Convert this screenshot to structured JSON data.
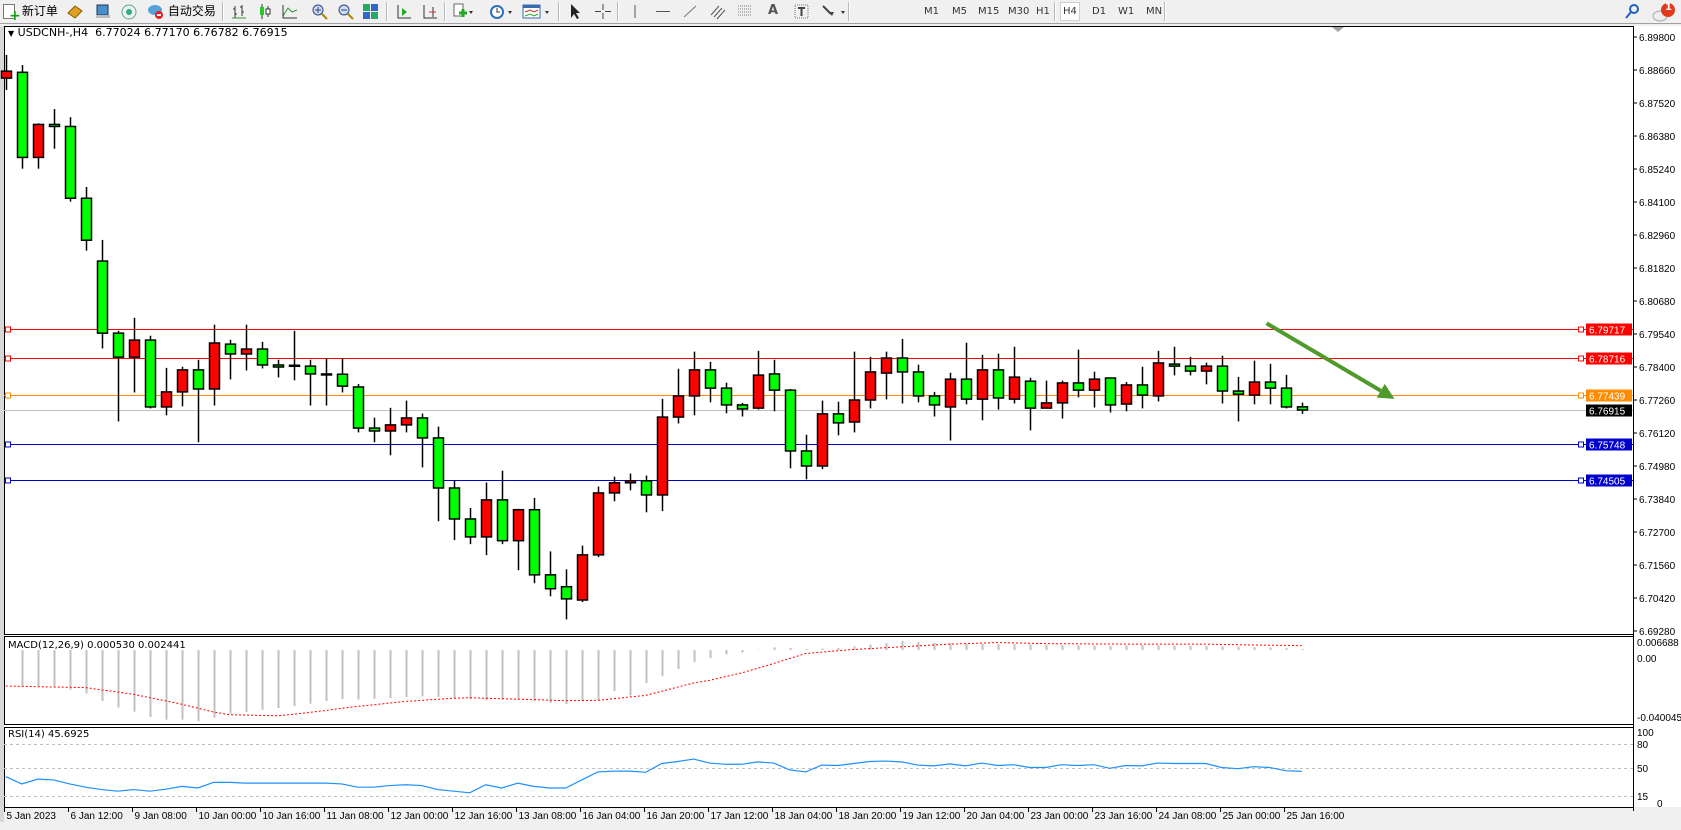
{
  "toolbar": {
    "new_order_label": "新订单",
    "auto_trading_label": "自动交易",
    "timeframes": [
      "M1",
      "M5",
      "M15",
      "M30",
      "H1",
      "H4",
      "D1",
      "W1",
      "MN"
    ],
    "active_timeframe": "H4",
    "notification_count": "1",
    "icons": [
      "new-order-icon",
      "history-center-icon",
      "terminal-icon",
      "signals-icon",
      "auto-trading-icon",
      "bar-chart-icon",
      "candlestick-icon",
      "line-chart-icon",
      "zoom-in-icon",
      "zoom-out-icon",
      "tile-windows-icon",
      "auto-scroll-icon",
      "chart-shift-icon",
      "indicators-icon",
      "periods-icon",
      "templates-icon",
      "cursor-icon",
      "crosshair-icon",
      "vertical-line-icon",
      "horizontal-line-icon",
      "trendline-icon",
      "equidistant-channel-icon",
      "fibonacci-icon",
      "text-icon",
      "text-label-icon",
      "arrows-icon",
      "search-icon",
      "notification-icon"
    ]
  },
  "chart": {
    "symbol": "USDCNH-,H4",
    "open": "6.77024",
    "high": "6.77170",
    "low": "6.76782",
    "close": "6.76915",
    "bull_color": "#ff0000",
    "bear_color": "#00ff00"
  },
  "price_axis": {
    "ticks": [
      "6.89800",
      "6.88660",
      "6.87520",
      "6.86380",
      "6.85240",
      "6.84100",
      "6.82960",
      "6.81820",
      "6.80680",
      "6.79540",
      "6.78400",
      "6.77260",
      "6.76120",
      "6.74980",
      "6.73840",
      "6.72700",
      "6.71560",
      "6.70420",
      "6.69280"
    ]
  },
  "hlines": [
    {
      "price": "6.79717",
      "color": "#ff0000"
    },
    {
      "price": "6.78716",
      "color": "#ff0000"
    },
    {
      "price": "6.77439",
      "color": "#ff8c00"
    },
    {
      "price": "6.76915",
      "color": "#000000",
      "line_color": "#c0c0c0",
      "is_bid": true
    },
    {
      "price": "6.75748",
      "color": "#0000cd"
    },
    {
      "price": "6.74505",
      "color": "#0000cd"
    }
  ],
  "arrow": {
    "color": "#4e9a2a",
    "from_index": 78.8,
    "from_price": 6.7991,
    "to_index": 86.8,
    "to_price": 6.773
  },
  "macd": {
    "label": "MACD(12,26,9) 0.000530 0.002441",
    "axis_ticks": [
      "0.006688",
      "0.00",
      "-0.040045"
    ],
    "hist_color": "#c0c0c0",
    "signal_color": "#ff0000"
  },
  "rsi": {
    "label": "RSI(14) 45.6925",
    "axis_ticks": [
      "100",
      "80",
      "50",
      "15",
      "0"
    ],
    "levels": [
      80,
      50,
      15
    ],
    "color": "#1e90ff"
  },
  "time_labels": [
    "5 Jan 2023",
    "6 Jan 12:00",
    "9 Jan 08:00",
    "10 Jan 00:00",
    "10 Jan 16:00",
    "11 Jan 08:00",
    "12 Jan 00:00",
    "12 Jan 16:00",
    "13 Jan 08:00",
    "16 Jan 04:00",
    "16 Jan 20:00",
    "17 Jan 12:00",
    "18 Jan 04:00",
    "18 Jan 20:00",
    "19 Jan 12:00",
    "20 Jan 04:00",
    "23 Jan 00:00",
    "23 Jan 16:00",
    "24 Jan 08:00",
    "25 Jan 00:00",
    "25 Jan 16:00"
  ],
  "chart_data": {
    "type": "candlestick",
    "ylim": [
      6.6928,
      6.898
    ],
    "grid": false,
    "ohlc": [
      [
        6.8838,
        6.8918,
        6.8797,
        6.8862
      ],
      [
        6.8858,
        6.8883,
        6.8525,
        6.8564
      ],
      [
        6.8564,
        6.8682,
        6.8525,
        6.8678
      ],
      [
        6.8678,
        6.8731,
        6.8594,
        6.8671
      ],
      [
        6.8671,
        6.8703,
        6.8411,
        6.8423
      ],
      [
        6.8423,
        6.8462,
        6.8242,
        6.8278
      ],
      [
        6.8206,
        6.8279,
        6.7904,
        6.7957
      ],
      [
        6.7957,
        6.7965,
        6.7652,
        6.7874
      ],
      [
        6.7874,
        6.801,
        6.7752,
        6.7933
      ],
      [
        6.7933,
        6.7948,
        6.7697,
        6.7702
      ],
      [
        6.7702,
        6.7837,
        6.7673,
        6.7754
      ],
      [
        6.7754,
        6.7841,
        6.7704,
        6.783
      ],
      [
        6.783,
        6.7865,
        6.758,
        6.7764
      ],
      [
        6.7764,
        6.7986,
        6.7707,
        6.7923
      ],
      [
        6.7919,
        6.7934,
        6.7797,
        6.7885
      ],
      [
        6.7885,
        6.7986,
        6.7828,
        6.7902
      ],
      [
        6.7902,
        6.7927,
        6.7835,
        6.7847
      ],
      [
        6.7847,
        6.7865,
        6.7804,
        6.784
      ],
      [
        6.7846,
        6.7965,
        6.7794,
        6.7845
      ],
      [
        6.7843,
        6.7865,
        6.7707,
        6.7816
      ],
      [
        6.7816,
        6.787,
        6.7707,
        6.7815
      ],
      [
        6.7815,
        6.787,
        6.7752,
        6.7774
      ],
      [
        6.7771,
        6.7781,
        6.7614,
        6.7629
      ],
      [
        6.7629,
        6.7665,
        6.758,
        6.7619
      ],
      [
        6.7619,
        6.7699,
        6.7535,
        6.764
      ],
      [
        6.764,
        6.7724,
        6.7614,
        6.7664
      ],
      [
        6.7664,
        6.7679,
        6.7493,
        6.7595
      ],
      [
        6.7595,
        6.7634,
        6.7307,
        6.7422
      ],
      [
        6.7422,
        6.7448,
        6.7242,
        6.7315
      ],
      [
        6.7315,
        6.7353,
        6.7228,
        6.7253
      ],
      [
        6.7253,
        6.7441,
        6.719,
        6.7381
      ],
      [
        6.7381,
        6.7482,
        6.7228,
        6.724
      ],
      [
        6.724,
        6.735,
        6.7138,
        6.7347
      ],
      [
        6.7347,
        6.7388,
        6.7093,
        6.7122
      ],
      [
        6.7122,
        6.7203,
        6.7048,
        6.7074
      ],
      [
        6.7081,
        6.7141,
        6.6968,
        6.7039
      ],
      [
        6.7035,
        6.7223,
        6.7028,
        6.7191
      ],
      [
        6.7191,
        6.7427,
        6.7183,
        6.7405
      ],
      [
        6.7405,
        6.7461,
        6.7376,
        6.744
      ],
      [
        6.744,
        6.7472,
        6.7414,
        6.7447
      ],
      [
        6.7447,
        6.7465,
        6.7338,
        6.7398
      ],
      [
        6.7398,
        6.773,
        6.7342,
        6.7667
      ],
      [
        6.7667,
        6.7834,
        6.7645,
        6.774
      ],
      [
        6.774,
        6.7893,
        6.7673,
        6.783
      ],
      [
        6.783,
        6.7858,
        6.7718,
        6.7767
      ],
      [
        6.7767,
        6.7786,
        6.768,
        6.7709
      ],
      [
        6.7709,
        6.7716,
        6.7669,
        6.7695
      ],
      [
        6.7698,
        6.7896,
        6.7693,
        6.7812
      ],
      [
        6.7816,
        6.7865,
        6.7687,
        6.776
      ],
      [
        6.776,
        6.7764,
        6.749,
        6.755
      ],
      [
        6.755,
        6.7606,
        6.7452,
        6.7498
      ],
      [
        6.7498,
        6.7724,
        6.7487,
        6.7678
      ],
      [
        6.7678,
        6.772,
        6.7604,
        6.7647
      ],
      [
        6.765,
        6.7893,
        6.7614,
        6.7726
      ],
      [
        6.7726,
        6.7875,
        6.7697,
        6.7823
      ],
      [
        6.7819,
        6.7893,
        6.7728,
        6.7871
      ],
      [
        6.7871,
        6.7937,
        6.7714,
        6.7823
      ],
      [
        6.7823,
        6.7848,
        6.7718,
        6.774
      ],
      [
        6.774,
        6.7754,
        6.7669,
        6.7709
      ],
      [
        6.7702,
        6.782,
        6.7586,
        6.7798
      ],
      [
        6.7798,
        6.7924,
        6.7711,
        6.7729
      ],
      [
        6.7729,
        6.7882,
        6.7656,
        6.783
      ],
      [
        6.783,
        6.7886,
        6.7693,
        6.7733
      ],
      [
        6.7729,
        6.791,
        6.7714,
        6.7805
      ],
      [
        6.7791,
        6.7803,
        6.7621,
        6.7698
      ],
      [
        6.7698,
        6.7793,
        6.7698,
        6.7716
      ],
      [
        6.7716,
        6.7793,
        6.7662,
        6.7785
      ],
      [
        6.7785,
        6.79,
        6.7735,
        6.776
      ],
      [
        6.776,
        6.7824,
        6.77,
        6.7798
      ],
      [
        6.7802,
        6.7802,
        6.7683,
        6.7709
      ],
      [
        6.7712,
        6.7788,
        6.7687,
        6.7778
      ],
      [
        6.7778,
        6.7841,
        6.7697,
        6.7743
      ],
      [
        6.774,
        6.7896,
        6.7721,
        6.7854
      ],
      [
        6.785,
        6.791,
        6.7811,
        6.7843
      ],
      [
        6.7843,
        6.7875,
        6.7811,
        6.7826
      ],
      [
        6.7826,
        6.7855,
        6.778,
        6.7843
      ],
      [
        6.7843,
        6.7879,
        6.7714,
        6.7757
      ],
      [
        6.7757,
        6.7806,
        6.7652,
        6.7746
      ],
      [
        6.7743,
        6.7862,
        6.7711,
        6.7788
      ],
      [
        6.7788,
        6.7851,
        6.7711,
        6.7767
      ],
      [
        6.7767,
        6.7813,
        6.7697,
        6.7702
      ],
      [
        6.77024,
        6.7717,
        6.76782,
        6.76915
      ]
    ],
    "macd_hist": [
      null,
      -0.0205,
      -0.0205,
      -0.0205,
      -0.0223,
      -0.0246,
      -0.0288,
      -0.0325,
      -0.0348,
      -0.0378,
      -0.0393,
      -0.0393,
      -0.0401,
      -0.0382,
      -0.0359,
      -0.035,
      -0.0337,
      -0.0327,
      -0.0316,
      -0.0303,
      -0.0288,
      -0.0276,
      -0.028,
      -0.0275,
      -0.0271,
      -0.0265,
      -0.0261,
      -0.0265,
      -0.0272,
      -0.0278,
      -0.0284,
      -0.028,
      -0.028,
      -0.0286,
      -0.0299,
      -0.0305,
      -0.0289,
      -0.0284,
      -0.0231,
      -0.0256,
      -0.0186,
      -0.0148,
      -0.0107,
      -0.0069,
      -0.0045,
      -0.0025,
      -0.0014,
      0.0002,
      0.0015,
      0.0012,
      0.0005,
      0.0008,
      0.0012,
      0.002,
      0.003,
      0.004,
      0.0051,
      0.0045,
      0.004,
      0.0038,
      0.0036,
      0.0035,
      0.0034,
      0.0033,
      0.0032,
      0.003,
      0.0028,
      0.0026,
      0.0025,
      0.0024,
      0.0026,
      0.0028,
      0.0027,
      0.0025,
      0.0024,
      0.0022,
      0.002,
      0.0018,
      0.0016,
      0.0014,
      0.001,
      0.00053
    ],
    "macd_signal": [
      -0.0203,
      -0.0205,
      -0.0207,
      -0.0209,
      -0.021,
      -0.0212,
      -0.0225,
      -0.0237,
      -0.025,
      -0.0269,
      -0.0287,
      -0.0306,
      -0.0328,
      -0.035,
      -0.0365,
      -0.0367,
      -0.0369,
      -0.0371,
      -0.0362,
      -0.0352,
      -0.0341,
      -0.0329,
      -0.0318,
      -0.0309,
      -0.0299,
      -0.029,
      -0.0284,
      -0.0278,
      -0.0272,
      -0.0269,
      -0.0272,
      -0.0275,
      -0.0277,
      -0.028,
      -0.0283,
      -0.0286,
      -0.0285,
      -0.0284,
      -0.0275,
      -0.0265,
      -0.0256,
      -0.0233,
      -0.0209,
      -0.0186,
      -0.0171,
      -0.015,
      -0.0129,
      -0.0103,
      -0.0076,
      -0.0048,
      -0.002,
      -0.0012,
      -0.0004,
      0.0003,
      0.0008,
      0.0013,
      0.0018,
      0.0023,
      0.0028,
      0.0033,
      0.0036,
      0.0039,
      0.0042,
      0.004,
      0.0038,
      0.0036,
      0.0035,
      0.0035,
      0.0034,
      0.0034,
      0.0033,
      0.0033,
      0.0033,
      0.0033,
      0.0033,
      0.0033,
      0.0031,
      0.003,
      0.0028,
      0.0027,
      0.0026,
      0.002441
    ],
    "macd_ylim": [
      -0.040045,
      0.006688
    ],
    "rsi_values": [
      39.2,
      30,
      36,
      35,
      30,
      26,
      23,
      21,
      23,
      21,
      23.5,
      27,
      25,
      32,
      32,
      31,
      31,
      31,
      31,
      31,
      31,
      30,
      26,
      26,
      28,
      29,
      28,
      23,
      21,
      19,
      29,
      25,
      31,
      27,
      25,
      25,
      35,
      45,
      46,
      46,
      44.5,
      55.5,
      58,
      61,
      56,
      54.5,
      54.5,
      57.5,
      56,
      47.5,
      45,
      53.5,
      53,
      55.5,
      58,
      58.5,
      57.5,
      53.5,
      52.5,
      55,
      52.5,
      56,
      53,
      54,
      50.5,
      50.5,
      54,
      53,
      54,
      49.5,
      53,
      52.5,
      56,
      55.5,
      55.5,
      55.5,
      50.5,
      49,
      51.5,
      50.5,
      46.5,
      45.6925
    ],
    "rsi_ylim": [
      0,
      100
    ]
  }
}
